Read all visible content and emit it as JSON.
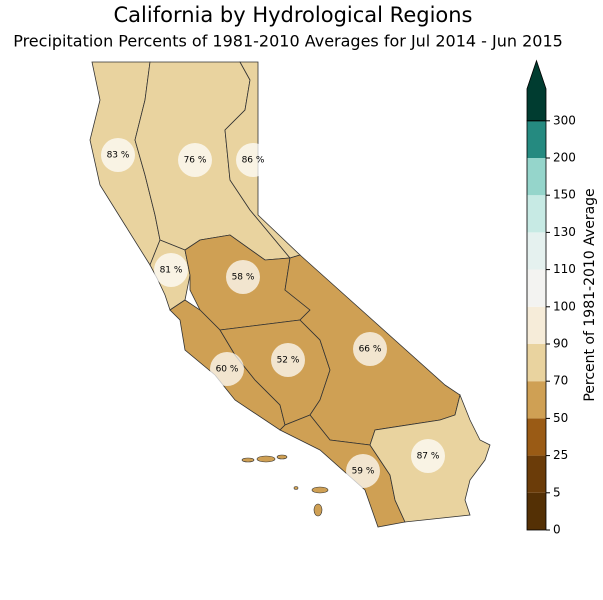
{
  "chart_data": {
    "type": "choropleth",
    "title": "California by Hydrological Regions",
    "subtitle": "Precipitation Percents of 1981-2010 Averages for Jul 2014 - Jun 2015",
    "values": [
      83,
      76,
      86,
      81,
      58,
      60,
      52,
      66,
      59,
      87
    ],
    "value_labels": [
      "83 %",
      "76 %",
      "86 %",
      "81 %",
      "58 %",
      "60 %",
      "52 %",
      "66 %",
      "59 %",
      "87 %"
    ],
    "colorbar_label": "Percent of 1981-2010 Average",
    "colorbar_ticks": [
      0,
      5,
      25,
      50,
      70,
      90,
      100,
      110,
      130,
      150,
      200,
      300
    ],
    "colors": [
      "#543005",
      "#6b3c09",
      "#9a5b15",
      "#cfa054",
      "#e9d39f",
      "#f6ecd9",
      "#f3f3f1",
      "#e5f1ef",
      "#c7eae4",
      "#95d5cb",
      "#258a80",
      "#003c30"
    ]
  }
}
